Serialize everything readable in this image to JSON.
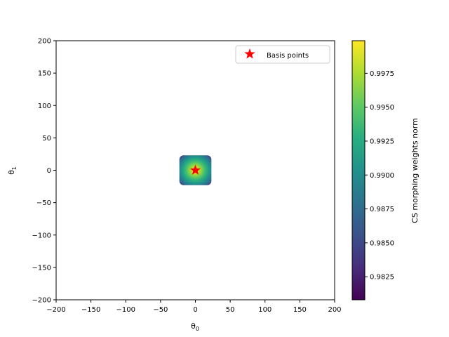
{
  "chart_data": {
    "type": "heatmap",
    "title": "",
    "x": {
      "label_base": "θ",
      "label_sub": "0",
      "lim": [
        -200,
        200
      ],
      "ticks": [
        -200,
        -150,
        -100,
        -50,
        0,
        50,
        100,
        150,
        200
      ],
      "tick_labels": [
        "−200",
        "−150",
        "−100",
        "−50",
        "0",
        "50",
        "100",
        "150",
        "200"
      ]
    },
    "y": {
      "label_base": "θ",
      "label_sub": "1",
      "lim": [
        -200,
        200
      ],
      "ticks": [
        -200,
        -150,
        -100,
        -50,
        0,
        50,
        100,
        150,
        200
      ],
      "tick_labels": [
        "−200",
        "−150",
        "−100",
        "−50",
        "0",
        "50",
        "100",
        "150",
        "200"
      ]
    },
    "heatmap_region": {
      "x_range": [
        -23,
        23
      ],
      "y_range": [
        -23,
        23
      ]
    },
    "colormap": "viridis",
    "colorbar": {
      "label": "CS morphing weights norm",
      "min": 0.9808,
      "max": 0.9999,
      "ticks": [
        0.9825,
        0.985,
        0.9875,
        0.99,
        0.9925,
        0.995,
        0.9975
      ],
      "tick_labels": [
        "0.9825",
        "0.9850",
        "0.9875",
        "0.9900",
        "0.9925",
        "0.9950",
        "0.9975"
      ]
    },
    "basis_points": {
      "name": "Basis points",
      "color": "#ff0000",
      "marker": "star",
      "points": [
        {
          "x": 0,
          "y": 0
        }
      ]
    },
    "legend": {
      "placement": "top-right",
      "entries": [
        "Basis points"
      ]
    },
    "grid": false
  }
}
